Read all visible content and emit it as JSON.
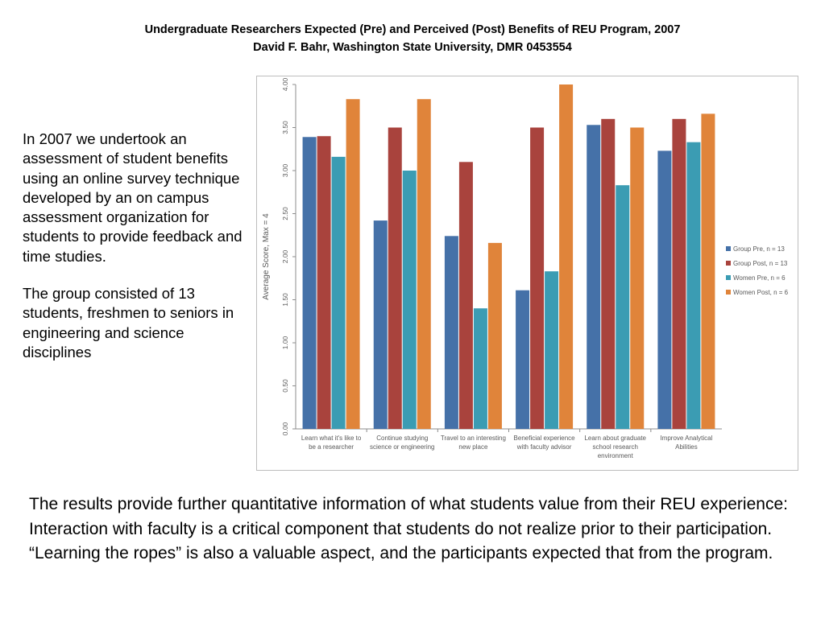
{
  "slide": {
    "title_line1": "Undergraduate Researchers Expected (Pre) and Perceived (Post) Benefits of REU Program, 2007",
    "title_line2": "David F. Bahr, Washington State University, DMR 0453554",
    "left_paragraph1": "In 2007 we undertook an assessment of student benefits using an online survey technique developed by an on campus assessment organization for students to provide feedback and time studies.",
    "left_paragraph2": "The group consisted of 13 students, freshmen to seniors in engineering and science disciplines",
    "bottom_paragraph": "The results provide further quantitative information of what students value from their REU experience:  Interaction with faculty is a critical component that students do not realize prior to their participation.  “Learning the ropes” is also a valuable aspect, and the participants expected that from the program."
  },
  "chart_data": {
    "type": "bar",
    "ylabel": "Average Score, Max = 4",
    "ylim": [
      0,
      4
    ],
    "yticks": [
      "0.00",
      "0.50",
      "1.00",
      "1.50",
      "2.00",
      "2.50",
      "3.00",
      "3.50",
      "4.00"
    ],
    "grid": false,
    "legend_position": "right",
    "categories": [
      [
        "Learn what it's like to",
        "be a researcher"
      ],
      [
        "Continue studying",
        "science or engineering"
      ],
      [
        "Travel to an interesting",
        "new place"
      ],
      [
        "Beneficial experience",
        "with faculty advisor"
      ],
      [
        "Learn about graduate",
        "school research",
        "environment"
      ],
      [
        "Improve Analytical",
        "Abilities"
      ]
    ],
    "series": [
      {
        "name": "Group Pre, n = 13",
        "color": "#4571a8",
        "values": [
          3.39,
          2.42,
          2.24,
          1.61,
          3.53,
          3.23
        ]
      },
      {
        "name": "Group Post, n = 13",
        "color": "#a9433d",
        "values": [
          3.4,
          3.5,
          3.1,
          3.5,
          3.6,
          3.6
        ]
      },
      {
        "name": "Women Pre, n = 6",
        "color": "#3b9cb3",
        "values": [
          3.16,
          3.0,
          1.4,
          1.83,
          2.83,
          3.33
        ]
      },
      {
        "name": "Women Post, n = 6",
        "color": "#e0843a",
        "values": [
          3.83,
          3.83,
          2.16,
          4.0,
          3.5,
          3.66
        ]
      }
    ]
  }
}
